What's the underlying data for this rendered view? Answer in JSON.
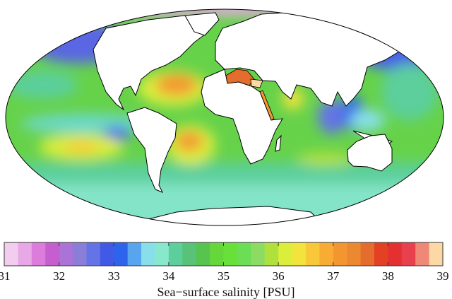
{
  "map": {
    "projection": "mollweide",
    "variable": "sea-surface salinity",
    "land_color": "#ffffff",
    "regions": [
      {
        "name": "north-atlantic-subtropical-high",
        "value": 37.3
      },
      {
        "name": "south-atlantic-subtropical-high",
        "value": 37.2
      },
      {
        "name": "south-pacific-subtropical-high",
        "value": 36.3
      },
      {
        "name": "mediterranean",
        "value": 38.5
      },
      {
        "name": "red-sea",
        "value": 39.0
      },
      {
        "name": "arabian-sea",
        "value": 36.3
      },
      {
        "name": "bay-of-bengal",
        "value": 32.5
      },
      {
        "name": "north-pacific",
        "value": 32.8
      },
      {
        "name": "arctic",
        "value": 31.0
      },
      {
        "name": "southern-ocean",
        "value": 34.0
      },
      {
        "name": "equatorial-pacific",
        "value": 34.5
      }
    ]
  },
  "colorbar": {
    "min": 31,
    "max": 39,
    "step": 0.25,
    "ticks": [
      "31",
      "32",
      "33",
      "34",
      "35",
      "36",
      "37",
      "38",
      "39"
    ],
    "label": "Sea−surface salinity [PSU]",
    "colors": [
      "#f2cdf0",
      "#e8a8e6",
      "#dc7cdc",
      "#c75ecf",
      "#ab72d8",
      "#8a7ed8",
      "#6474e6",
      "#405ae6",
      "#2e64ec",
      "#58a4ee",
      "#88dfe9",
      "#88e8cc",
      "#5ccf9c",
      "#58c278",
      "#58c450",
      "#66d73a",
      "#68e03a",
      "#6cde56",
      "#8cdc64",
      "#b0e03c",
      "#dcee3c",
      "#f2e43c",
      "#f8c83a",
      "#f8ac34",
      "#f49630",
      "#ec8830",
      "#e46c2c",
      "#e44024",
      "#e43030",
      "#e8404c",
      "#f08878",
      "#fcd8a4"
    ]
  }
}
